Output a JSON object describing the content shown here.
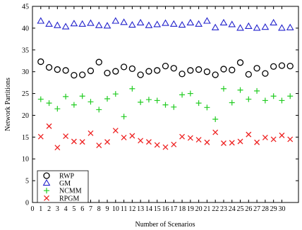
{
  "chart_data": {
    "type": "scatter",
    "xlabel": "Number of Scenarios",
    "ylabel": "Network Partitions",
    "xlim": [
      0,
      32
    ],
    "ylim": [
      0,
      45
    ],
    "x_ticks": [
      0,
      1,
      2,
      3,
      4,
      5,
      6,
      7,
      8,
      9,
      10,
      11,
      12,
      13,
      14,
      15,
      16,
      17,
      18,
      19,
      20,
      21,
      22,
      23,
      24,
      25,
      26,
      27,
      28,
      29,
      30
    ],
    "y_ticks": [
      0,
      5,
      10,
      15,
      20,
      25,
      30,
      35,
      40,
      45
    ],
    "grid": false,
    "legend_position": "bottom-left",
    "x": [
      1,
      2,
      3,
      4,
      5,
      6,
      7,
      8,
      9,
      10,
      11,
      12,
      13,
      14,
      15,
      16,
      17,
      18,
      19,
      20,
      21,
      22,
      23,
      24,
      25,
      26,
      27,
      28,
      29,
      30,
      31
    ],
    "series": [
      {
        "name": "RWP",
        "marker": "circle",
        "color": "#000000",
        "values": [
          32.3,
          31.0,
          30.5,
          30.3,
          29.2,
          29.3,
          30.2,
          32.2,
          29.7,
          30.1,
          31.1,
          30.7,
          29.3,
          30.1,
          30.3,
          31.3,
          30.8,
          29.5,
          30.3,
          30.5,
          30.0,
          29.3,
          30.6,
          30.4,
          32.1,
          29.4,
          30.8,
          29.6,
          31.2,
          31.4,
          31.3
        ]
      },
      {
        "name": "GM",
        "marker": "triangle",
        "color": "#2222cc",
        "values": [
          41.6,
          40.9,
          40.6,
          40.3,
          41.0,
          40.9,
          41.1,
          40.6,
          40.5,
          41.6,
          41.3,
          40.7,
          41.2,
          40.6,
          40.8,
          41.1,
          40.9,
          40.7,
          41.2,
          40.9,
          41.6,
          40.1,
          41.2,
          40.8,
          40.0,
          40.4,
          40.0,
          40.2,
          41.2,
          40.0,
          40.1
        ]
      },
      {
        "name": "NCMM",
        "marker": "plus",
        "color": "#22cc22",
        "values": [
          23.7,
          22.8,
          21.5,
          24.3,
          22.4,
          24.4,
          23.1,
          21.3,
          23.8,
          24.9,
          19.7,
          26.1,
          23.0,
          23.6,
          23.4,
          22.4,
          21.9,
          24.7,
          25.0,
          22.8,
          21.8,
          19.1,
          26.1,
          22.9,
          25.8,
          23.7,
          25.6,
          23.4,
          24.4,
          23.4,
          24.4
        ]
      },
      {
        "name": "RPGM",
        "marker": "cross",
        "color": "#ee2222",
        "values": [
          15.1,
          17.5,
          12.6,
          15.2,
          14.0,
          13.9,
          15.9,
          13.1,
          13.9,
          16.5,
          14.9,
          15.3,
          14.2,
          13.9,
          13.2,
          12.7,
          13.3,
          15.1,
          14.8,
          14.4,
          13.8,
          16.1,
          13.6,
          13.7,
          14.0,
          15.6,
          13.8,
          14.9,
          14.5,
          15.4,
          14.5
        ]
      }
    ]
  }
}
